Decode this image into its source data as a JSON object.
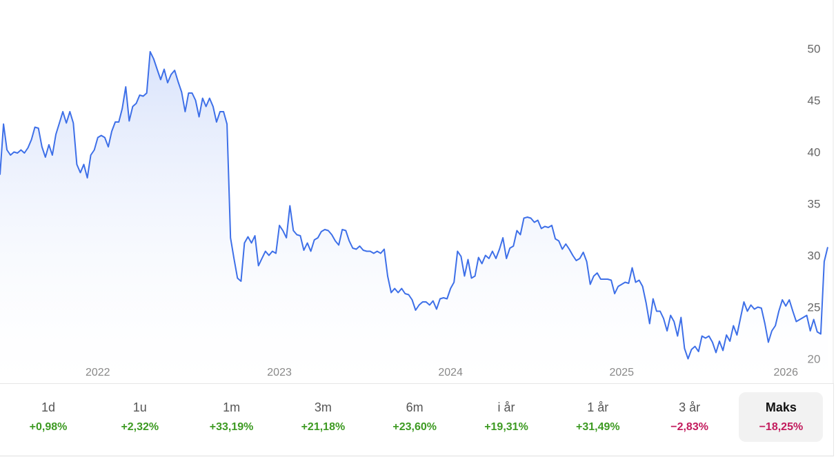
{
  "chart_data": {
    "type": "line",
    "categories": [
      null,
      null,
      null,
      null,
      null,
      null,
      null,
      null,
      null,
      null,
      null,
      null,
      null,
      null,
      null,
      null,
      null,
      null,
      null,
      null,
      null,
      null,
      null,
      null,
      null,
      null,
      null,
      null,
      "2022",
      null,
      null,
      null,
      null,
      null,
      null,
      null,
      null,
      null,
      null,
      null,
      null,
      null,
      null,
      null,
      null,
      null,
      null,
      null,
      null,
      null,
      null,
      null,
      null,
      null,
      null,
      null,
      null,
      null,
      null,
      null,
      null,
      null,
      null,
      null,
      null,
      null,
      null,
      null,
      null,
      null,
      null,
      null,
      null,
      null,
      null,
      null,
      null,
      null,
      null,
      null,
      "2023",
      null,
      null,
      null,
      null,
      null,
      null,
      null,
      null,
      null,
      null,
      null,
      null,
      null,
      null,
      null,
      null,
      null,
      null,
      null,
      null,
      null,
      null,
      null,
      null,
      null,
      null,
      null,
      null,
      null,
      null,
      null,
      null,
      null,
      null,
      null,
      null,
      null,
      null,
      null,
      null,
      null,
      null,
      null,
      null,
      null,
      null,
      null,
      null,
      "2024",
      null,
      null,
      null,
      null,
      null,
      null,
      null,
      null,
      null,
      null,
      null,
      null,
      null,
      null,
      null,
      null,
      null,
      null,
      null,
      null,
      null,
      null,
      null,
      null,
      null,
      null,
      null,
      null,
      null,
      null,
      null,
      null,
      null,
      null,
      null,
      null,
      null,
      null,
      null,
      null,
      null,
      null,
      null,
      null,
      null,
      null,
      null,
      null,
      "2025",
      null,
      null,
      null,
      null,
      null,
      null,
      null,
      null,
      null,
      null,
      null,
      null,
      null,
      null,
      null,
      null,
      null,
      null,
      null,
      null,
      null,
      null,
      null,
      null,
      null,
      null,
      null,
      null,
      null,
      null,
      null,
      null,
      null,
      null,
      null,
      null,
      null,
      null,
      null,
      null,
      null,
      null,
      null,
      null,
      null,
      null,
      "2026",
      null,
      null,
      null,
      null,
      null,
      null,
      null,
      null,
      null,
      null,
      null,
      null
    ],
    "values": [
      37.9,
      42.8,
      40.3,
      39.8,
      40.1,
      40.0,
      40.3,
      40.0,
      40.5,
      41.3,
      42.5,
      42.4,
      40.6,
      39.6,
      40.8,
      39.8,
      41.8,
      42.9,
      44.0,
      42.9,
      44.0,
      42.9,
      38.9,
      38.1,
      38.9,
      37.6,
      39.8,
      40.3,
      41.5,
      41.7,
      41.5,
      40.6,
      42.1,
      43.0,
      43.0,
      44.3,
      46.4,
      43.1,
      44.5,
      44.8,
      45.6,
      45.5,
      45.8,
      49.8,
      49.1,
      48.1,
      47.1,
      48.1,
      46.8,
      47.6,
      48.0,
      46.9,
      45.9,
      44.0,
      45.8,
      45.8,
      45.1,
      43.5,
      45.3,
      44.5,
      45.3,
      44.5,
      43.0,
      44.0,
      44.0,
      42.8,
      31.8,
      29.8,
      27.9,
      27.6,
      31.3,
      31.9,
      31.3,
      32.0,
      29.1,
      29.8,
      30.5,
      30.1,
      30.5,
      30.3,
      33.0,
      32.5,
      31.8,
      34.9,
      32.5,
      32.1,
      32.0,
      30.6,
      31.3,
      30.5,
      31.6,
      31.8,
      32.4,
      32.6,
      32.5,
      32.1,
      31.5,
      31.1,
      32.6,
      32.5,
      31.5,
      30.8,
      30.7,
      31.0,
      30.6,
      30.5,
      30.5,
      30.3,
      30.5,
      30.3,
      30.7,
      28.1,
      26.5,
      26.9,
      26.5,
      26.9,
      26.4,
      26.3,
      25.8,
      24.8,
      25.3,
      25.6,
      25.6,
      25.3,
      25.7,
      24.9,
      25.9,
      26.0,
      25.9,
      26.9,
      27.5,
      30.5,
      30.0,
      28.1,
      29.7,
      27.9,
      28.1,
      29.9,
      29.3,
      30.1,
      29.8,
      30.5,
      29.8,
      30.7,
      31.8,
      29.8,
      30.8,
      31.0,
      32.5,
      32.1,
      33.7,
      33.8,
      33.7,
      33.3,
      33.5,
      32.7,
      32.9,
      32.8,
      33.0,
      31.7,
      31.5,
      30.7,
      31.2,
      30.7,
      30.1,
      29.6,
      29.8,
      30.4,
      29.5,
      27.3,
      28.1,
      28.4,
      27.8,
      27.8,
      27.8,
      27.7,
      26.4,
      27.1,
      27.3,
      27.5,
      27.4,
      28.9,
      27.5,
      27.7,
      27.1,
      25.5,
      23.5,
      25.9,
      24.7,
      24.7,
      24.0,
      22.8,
      24.3,
      23.7,
      22.3,
      24.1,
      21.1,
      20.1,
      21.0,
      21.3,
      20.8,
      22.3,
      22.1,
      22.3,
      21.7,
      20.7,
      21.8,
      20.9,
      22.4,
      21.8,
      23.3,
      22.4,
      24.0,
      25.6,
      24.7,
      25.3,
      24.9,
      25.1,
      25.0,
      23.5,
      21.7,
      22.8,
      23.3,
      24.7,
      25.8,
      25.2,
      25.8,
      24.7,
      23.7,
      23.9,
      24.1,
      24.3,
      22.8,
      23.9,
      22.7,
      22.5,
      29.5,
      30.9
    ],
    "color": "#3d6fe8",
    "ylim": [
      17.8,
      54.8
    ],
    "yticks": [
      20,
      25,
      30,
      35,
      40,
      45,
      50
    ],
    "grid": false
  },
  "periods": [
    {
      "label": "1d",
      "change": "+0,98%"
    },
    {
      "label": "1u",
      "change": "+2,32%"
    },
    {
      "label": "1m",
      "change": "+33,19%"
    },
    {
      "label": "3m",
      "change": "+21,18%"
    },
    {
      "label": "6m",
      "change": "+23,60%"
    },
    {
      "label": "i år",
      "change": "+19,31%"
    },
    {
      "label": "1 år",
      "change": "+31,49%"
    },
    {
      "label": "3 år",
      "change": "−2,83%"
    },
    {
      "label": "Maks",
      "change": "−18,25%",
      "selected": true
    }
  ]
}
